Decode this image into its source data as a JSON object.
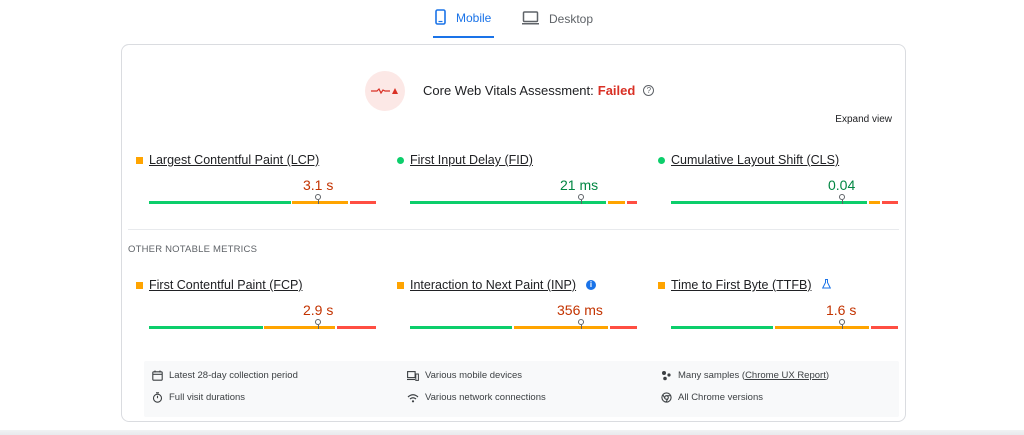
{
  "tabs": [
    {
      "label": "Mobile",
      "active": true,
      "icon": "phone-icon"
    },
    {
      "label": "Desktop",
      "active": false,
      "icon": "monitor-icon"
    }
  ],
  "assessment": {
    "label": "Core Web Vitals Assessment:",
    "status": "Failed",
    "status_color": "#d93025"
  },
  "expand_view": "Expand view",
  "core_metrics": [
    {
      "name": "Largest Contentful Paint (LCP)",
      "value": "3.1 s",
      "rating": "average"
    },
    {
      "name": "First Input Delay (FID)",
      "value": "21 ms",
      "rating": "good"
    },
    {
      "name": "Cumulative Layout Shift (CLS)",
      "value": "0.04",
      "rating": "good"
    }
  ],
  "other_label": "OTHER NOTABLE METRICS",
  "other_metrics": [
    {
      "name": "First Contentful Paint (FCP)",
      "value": "2.9 s",
      "rating": "average"
    },
    {
      "name": "Interaction to Next Paint (INP)",
      "value": "356 ms",
      "rating": "average",
      "icon": "info-icon"
    },
    {
      "name": "Time to First Byte (TTFB)",
      "value": "1.6 s",
      "rating": "average",
      "icon": "flask-icon"
    }
  ],
  "footer": {
    "collection_period": "Latest 28-day collection period",
    "devices": "Various mobile devices",
    "samples_prefix": "Many samples (",
    "samples_link": "Chrome UX Report",
    "samples_suffix": ")",
    "visit_durations": "Full visit durations",
    "network": "Various network connections",
    "chrome_versions": "All Chrome versions"
  },
  "colors": {
    "good": "#0cce6b",
    "average": "#ffa400",
    "poor": "#ff4e42",
    "accent": "#1a73e8"
  }
}
